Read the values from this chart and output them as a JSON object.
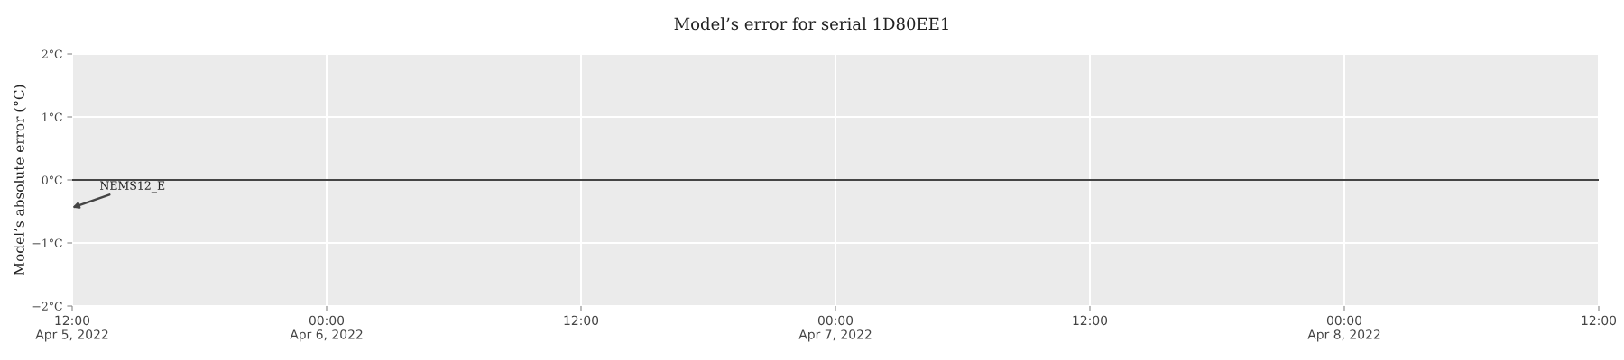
{
  "chart_data": {
    "type": "line",
    "title": "Model’s error for serial 1D80EE1",
    "ylabel": "Model’s absolute error (°C)",
    "series": [
      {
        "color": "#444444",
        "x": [
          "2022-04-05T12:00",
          "2022-04-08T12:00"
        ],
        "values": [
          0,
          0
        ]
      }
    ],
    "xlim": [
      "2022-04-05T12:00",
      "2022-04-08T12:00"
    ],
    "xticks": [
      {
        "value": "2022-04-05T12:00",
        "label": "12:00\nApr 5, 2022"
      },
      {
        "value": "2022-04-06T00:00",
        "label": "00:00\nApr 6, 2022"
      },
      {
        "value": "2022-04-06T12:00",
        "label": "12:00"
      },
      {
        "value": "2022-04-07T00:00",
        "label": "00:00\nApr 7, 2022"
      },
      {
        "value": "2022-04-07T12:00",
        "label": "12:00"
      },
      {
        "value": "2022-04-08T00:00",
        "label": "00:00\nApr 8, 2022"
      },
      {
        "value": "2022-04-08T12:00",
        "label": "12:00"
      }
    ],
    "ylim": [
      -2,
      2
    ],
    "yticks": [
      {
        "value": -2,
        "label": "−2°C"
      },
      {
        "value": -1,
        "label": "−1°C"
      },
      {
        "value": 0,
        "label": "0°C"
      },
      {
        "value": 1,
        "label": "1°C"
      },
      {
        "value": 2,
        "label": "2°C"
      }
    ],
    "annotations": [
      "NEMS12_E"
    ],
    "grid": true
  }
}
